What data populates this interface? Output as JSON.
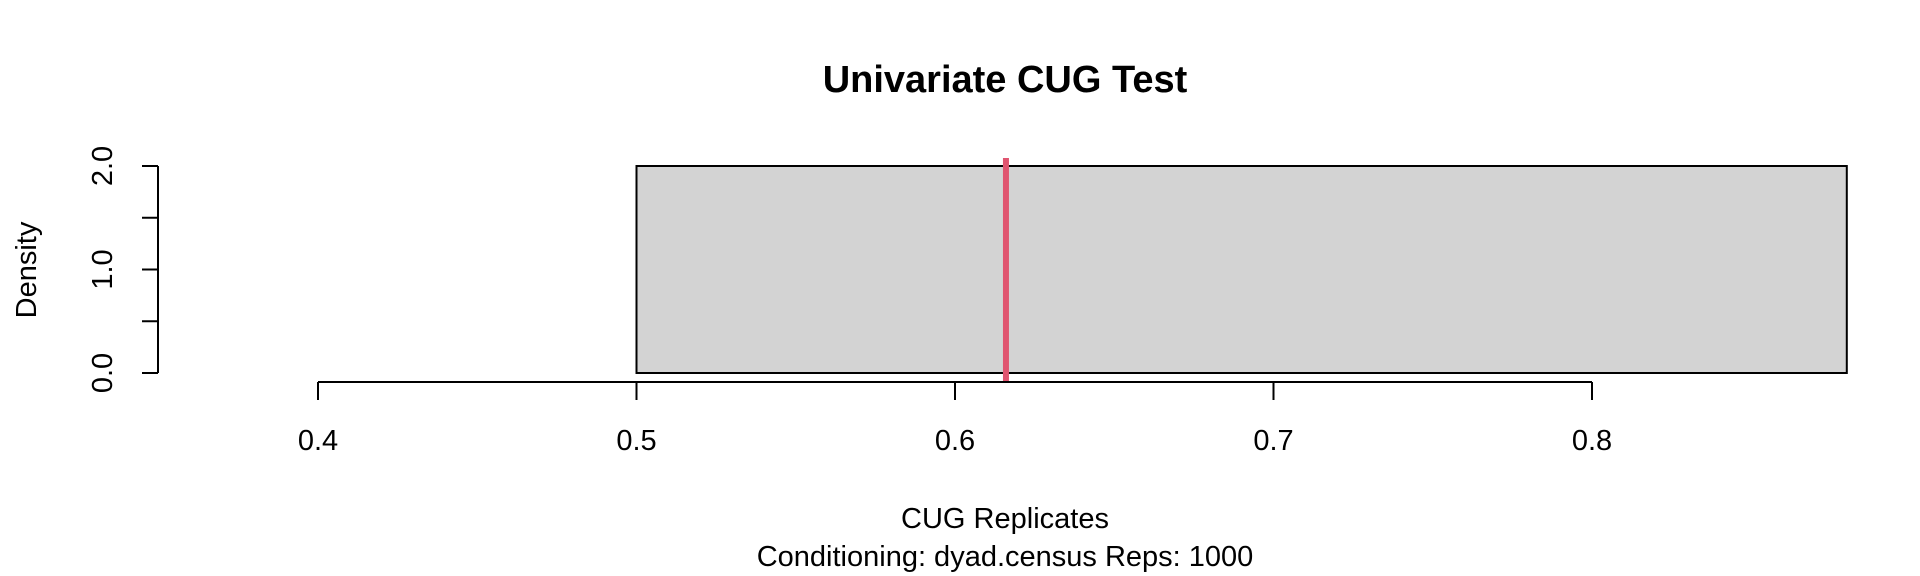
{
  "chart_data": {
    "type": "bar",
    "title": "Univariate CUG Test",
    "xlabel": "CUG Replicates",
    "subtitle": "Conditioning: dyad.census Reps: 1000",
    "ylabel": "Density",
    "xlim": [
      0.4,
      0.88
    ],
    "ylim": [
      0,
      2.0
    ],
    "x_ticks": [
      0.4,
      0.5,
      0.6,
      0.7,
      0.8
    ],
    "x_tick_labels": [
      "0.4",
      "0.5",
      "0.6",
      "0.7",
      "0.8"
    ],
    "y_ticks": [
      0.0,
      0.5,
      1.0,
      1.5,
      2.0
    ],
    "y_tick_labels": [
      "0.0",
      "",
      "1.0",
      "",
      "2.0"
    ],
    "bins": [
      {
        "x_start": 0.5,
        "x_end": 0.88,
        "density": 2.0
      }
    ],
    "observed_value": 0.616,
    "grid": false,
    "bar_color": "#d3d3d3",
    "observed_line_color": "#e05570"
  }
}
